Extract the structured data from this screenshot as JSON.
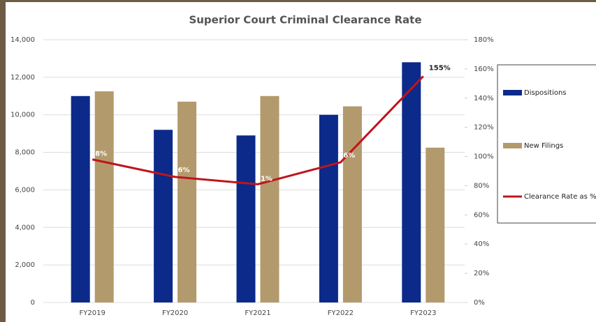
{
  "chart_data": {
    "type": "bar-line",
    "title": "Superior Court Criminal Clearance Rate",
    "categories": [
      "FY2019",
      "FY2020",
      "FY2021",
      "FY2022",
      "FY2023"
    ],
    "series": [
      {
        "name": "Dispositions",
        "color": "#0b2a8a",
        "type": "bar",
        "values": [
          11000,
          9200,
          8900,
          10000,
          12800
        ]
      },
      {
        "name": "New Filings",
        "color": "#b39a6c",
        "type": "bar",
        "values": [
          11250,
          10700,
          11000,
          10450,
          8250
        ]
      },
      {
        "name": "Clearance Rate as %",
        "color": "#c0141c",
        "type": "line",
        "axis": "y2",
        "values": [
          98,
          86,
          81,
          96,
          155
        ],
        "value_labels": [
          "98%",
          "86%",
          "81%",
          "96%",
          "155%"
        ]
      }
    ],
    "ylim": [
      0,
      14000
    ],
    "yticks": [
      0,
      {
        "value": 2000,
        "label": "2,000"
      },
      {
        "value": 4000,
        "label": "4,000"
      },
      {
        "value": 6000,
        "label": "6,000"
      },
      {
        "value": 8000,
        "label": "8,000"
      },
      {
        "value": 10000,
        "label": "10,000"
      },
      {
        "value": 12000,
        "label": "12,000"
      },
      {
        "value": 14000,
        "label": "14,000"
      }
    ],
    "y2lim": [
      0,
      180
    ],
    "y2ticks": [
      {
        "value": 0,
        "label": "0%"
      },
      {
        "value": 20,
        "label": "20%"
      },
      {
        "value": 40,
        "label": "40%"
      },
      {
        "value": 60,
        "label": "60%"
      },
      {
        "value": 80,
        "label": "80%"
      },
      {
        "value": 100,
        "label": "100%"
      },
      {
        "value": 120,
        "label": "120%"
      },
      {
        "value": 140,
        "label": "140%"
      },
      {
        "value": 160,
        "label": "160%"
      },
      {
        "value": 180,
        "label": "180%"
      }
    ],
    "grid": true,
    "legend": "right"
  }
}
